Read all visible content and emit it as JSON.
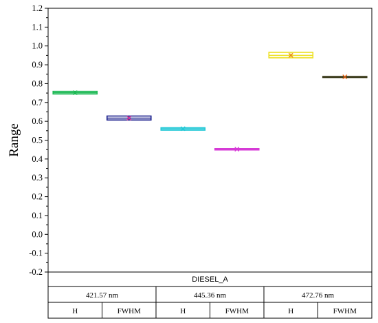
{
  "chart_data": {
    "type": "box",
    "ylabel": "Range",
    "ylim": [
      -0.2,
      1.2
    ],
    "ytick_step": 0.1,
    "ytick_labels": [
      "-0.2",
      "-0.1",
      "0.0",
      "0.1",
      "0.2",
      "0.3",
      "0.4",
      "0.5",
      "0.6",
      "0.7",
      "0.8",
      "0.9",
      "1.0",
      "1.1",
      "1.2"
    ],
    "group_title": "DIESEL_A",
    "wavelengths": [
      "421.57 nm",
      "445.36 nm",
      "472.76 nm"
    ],
    "categories": [
      "H",
      "FWHM",
      "H",
      "FWHM",
      "H",
      "FWHM"
    ],
    "boxes": [
      {
        "wavelength": "421.57 nm",
        "param": "H",
        "color": "#1db954",
        "q1": 0.745,
        "median": 0.752,
        "q3": 0.759,
        "min": 0.745,
        "max": 0.759,
        "mean": 0.752
      },
      {
        "wavelength": "421.57 nm",
        "param": "FWHM",
        "color": "#1a1f8c",
        "q1": 0.607,
        "median": 0.617,
        "q3": 0.628,
        "min": 0.607,
        "max": 0.628,
        "mean": 0.617,
        "mean_color": "#e0309a"
      },
      {
        "wavelength": "445.36 nm",
        "param": "H",
        "color": "#22c8d6",
        "q1": 0.553,
        "median": 0.56,
        "q3": 0.566,
        "min": 0.553,
        "max": 0.566,
        "mean": 0.561
      },
      {
        "wavelength": "445.36 nm",
        "param": "FWHM",
        "color": "#d63ad6",
        "q1": 0.448,
        "median": 0.452,
        "q3": 0.455,
        "min": 0.448,
        "max": 0.455,
        "mean": 0.452
      },
      {
        "wavelength": "472.76 nm",
        "param": "H",
        "color": "#ede021",
        "q1": 0.937,
        "median": 0.95,
        "q3": 0.966,
        "min": 0.937,
        "max": 0.966,
        "mean": 0.95,
        "mean_color": "#e8870e"
      },
      {
        "wavelength": "472.76 nm",
        "param": "FWHM",
        "color": "#3a3a1a",
        "q1": 0.834,
        "median": 0.836,
        "q3": 0.838,
        "min": 0.834,
        "max": 0.838,
        "mean": 0.836,
        "mean_color": "#e8600e"
      }
    ],
    "grid": false
  }
}
